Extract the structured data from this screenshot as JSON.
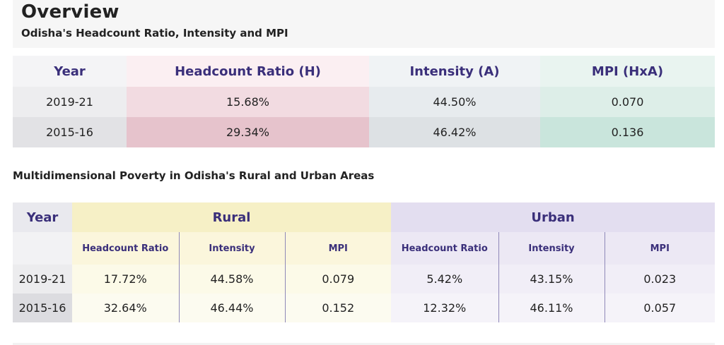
{
  "overview": {
    "title": "Overview",
    "subtitle": "Odisha's Headcount Ratio, Intensity and MPI"
  },
  "table1": {
    "headers": [
      "Year",
      "Headcount Ratio (H)",
      "Intensity (A)",
      "MPI (HxA)"
    ],
    "rows": [
      [
        "2019-21",
        "15.68%",
        "44.50%",
        "0.070"
      ],
      [
        "2015-16",
        "29.34%",
        "46.42%",
        "0.136"
      ]
    ]
  },
  "section2": {
    "title": "Multidimensional Poverty in Odisha's Rural and Urban Areas"
  },
  "table2": {
    "year_header": "Year",
    "groups": [
      "Rural",
      "Urban"
    ],
    "subheaders": [
      "Headcount Ratio",
      "Intensity",
      "MPI",
      "Headcount Ratio",
      "Intensity",
      "MPI"
    ],
    "rows": [
      [
        "2019-21",
        "17.72%",
        "44.58%",
        "0.079",
        "5.42%",
        "43.15%",
        "0.023"
      ],
      [
        "2015-16",
        "32.64%",
        "46.44%",
        "0.152",
        "12.32%",
        "46.11%",
        "0.057"
      ]
    ]
  }
}
